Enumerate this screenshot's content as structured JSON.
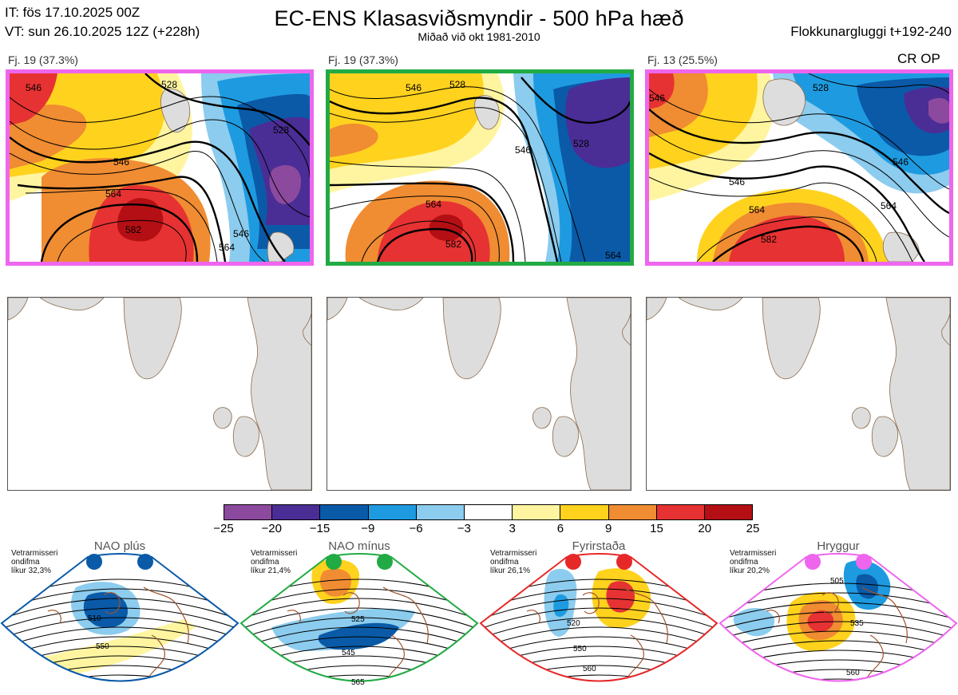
{
  "header": {
    "it_line": "IT: fös 17.10.2025 00Z",
    "vt_line": "VT: sun 26.10.2025 12Z  (+228h)",
    "title": "EC-ENS Klasasviðsmyndir - 500 hPa hæð",
    "subtitle": "Miðað við okt 1981-2010",
    "window": "Flokkunargluggi t+192-240"
  },
  "clusters": [
    {
      "label": "Fj. 19 (37.3%)",
      "border_color": "#ee66ee",
      "contour_labels": [
        "546",
        "528",
        "546",
        "528",
        "564",
        "582",
        "564",
        "546"
      ]
    },
    {
      "label": "Fj. 19 (37.3%)",
      "border_color": "#22aa44",
      "contour_labels": [
        "546",
        "528",
        "546",
        "528",
        "564",
        "582",
        "564"
      ]
    },
    {
      "label": "Fj. 13 (25.5%)",
      "border_color": "#ee66ee",
      "contour_labels": [
        "546",
        "528",
        "546",
        "546",
        "564",
        "582",
        "564"
      ]
    }
  ],
  "cr_op": "CR OP",
  "colorbar": {
    "colors": [
      "#8c4a9e",
      "#4b2d96",
      "#0a5aa8",
      "#1e9be0",
      "#8cccee",
      "#ffffff",
      "#fff5a0",
      "#ffd21e",
      "#f08c32",
      "#e63232",
      "#b40f14"
    ],
    "ticks": [
      "−25",
      "−20",
      "−15",
      "−9",
      "−6",
      "−3",
      "3",
      "6",
      "9",
      "15",
      "20",
      "25"
    ]
  },
  "regimes": [
    {
      "name": "NAO plús",
      "info": [
        "Vetrarmisseri",
        "ondifma",
        "líkur 32,3%"
      ],
      "color": "#0a5aa8",
      "contour_labels": [
        "510",
        "550"
      ]
    },
    {
      "name": "NAO mínus",
      "info": [
        "Vetrarmisseri",
        "ondifma",
        "líkur 21,4%"
      ],
      "color": "#22aa44",
      "contour_labels": [
        "525",
        "545",
        "565"
      ]
    },
    {
      "name": "Fyrirstaða",
      "info": [
        "Vetrarmisseri",
        "ondifma",
        "líkur 26,1%"
      ],
      "color": "#e62828",
      "contour_labels": [
        "520",
        "550",
        "560"
      ]
    },
    {
      "name": "Hryggur",
      "info": [
        "Vetrarmisseri",
        "ondifma",
        "líkur 20,2%"
      ],
      "color": "#ee66ee",
      "contour_labels": [
        "505",
        "535",
        "560"
      ]
    }
  ]
}
